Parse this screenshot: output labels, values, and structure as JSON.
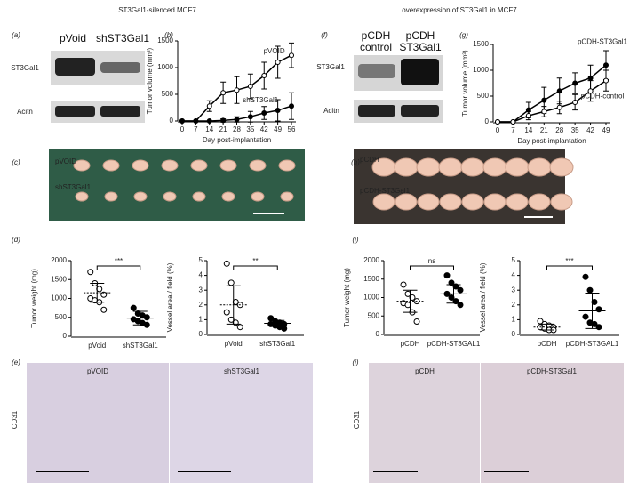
{
  "titles": [
    "ST3Gal1-silenced MCF7",
    "overexpression of ST3Gal1 in MCF7"
  ],
  "panel_letters": [
    "(a)",
    "(b)",
    "(c)",
    "(d)",
    "(e)",
    "(f)",
    "(g)",
    "(h)",
    "(i)",
    "(j)"
  ],
  "blots": [
    {
      "lanes": [
        "pVoid",
        "shST3Gal1"
      ],
      "rows": [
        "ST3Gal1",
        "Acitn"
      ]
    },
    {
      "lanes": [
        "pCDH control",
        "pCDH ST3Gal1"
      ],
      "rows": [
        "ST3Gal1",
        "Acitn"
      ]
    }
  ],
  "photos": [
    {
      "labels": [
        "pVOID",
        "shST3Gal1"
      ]
    },
    {
      "labels": [
        "pCDH",
        "pCDH-ST3Gal1"
      ]
    }
  ],
  "ihc": [
    {
      "row_label": "CD31",
      "panels": [
        "pVOID",
        "shST3Gal1"
      ]
    },
    {
      "row_label": "CD31",
      "panels": [
        "pCDH",
        "pCDH-ST3Gal1"
      ]
    }
  ],
  "chart_data": [
    {
      "type": "line",
      "x_label": "Day post-implantation",
      "y_label": "Tumor volume (mm³)",
      "x": [
        0,
        7,
        14,
        21,
        28,
        35,
        42,
        49,
        56
      ],
      "xlim": [
        0,
        56
      ],
      "xticks": [
        0,
        7,
        14,
        21,
        28,
        35,
        42,
        49,
        56
      ],
      "ylim": [
        0,
        1500
      ],
      "yticks": [
        0,
        500,
        1000,
        1500
      ],
      "series": [
        {
          "name": "pVOID",
          "marker_fill": "#ffffff",
          "values": [
            0,
            0,
            280,
            530,
            580,
            650,
            850,
            1100,
            1230
          ],
          "error": [
            0,
            0,
            100,
            200,
            250,
            230,
            250,
            300,
            230
          ]
        },
        {
          "name": "shST3Gal1",
          "marker_fill": "#000000",
          "values": [
            0,
            0,
            0,
            10,
            30,
            80,
            150,
            200,
            280
          ],
          "error": [
            0,
            0,
            0,
            30,
            50,
            100,
            120,
            200,
            250
          ]
        }
      ]
    },
    {
      "type": "line",
      "x_label": "Day post-implantation",
      "y_label": "Tumor volume (mm³)",
      "x": [
        0,
        7,
        14,
        21,
        28,
        35,
        42,
        49
      ],
      "xlim": [
        0,
        49
      ],
      "xticks": [
        0,
        7,
        14,
        21,
        28,
        35,
        42,
        49
      ],
      "ylim": [
        0,
        1500
      ],
      "yticks": [
        0,
        500,
        1000,
        1500
      ],
      "series": [
        {
          "name": "pCDH-ST3Gal1",
          "marker_fill": "#000000",
          "values": [
            0,
            0,
            230,
            420,
            600,
            750,
            850,
            1100
          ],
          "error": [
            0,
            0,
            150,
            250,
            250,
            200,
            250,
            280
          ]
        },
        {
          "name": "pCDH-control",
          "marker_fill": "#ffffff",
          "values": [
            0,
            0,
            120,
            200,
            280,
            380,
            600,
            800
          ],
          "error": [
            0,
            0,
            80,
            100,
            120,
            150,
            200,
            200
          ]
        }
      ]
    },
    {
      "type": "strip",
      "y_label": "Tumor weight (mg)",
      "categories": [
        "pVoid",
        "shST3Gal1"
      ],
      "ylim": [
        0,
        2000
      ],
      "yticks": [
        0,
        500,
        1000,
        1500,
        2000
      ],
      "annotation": "***",
      "groups": [
        {
          "marker_fill": "#ffffff",
          "values": [
            1700,
            1400,
            1250,
            1100,
            1000,
            950,
            900,
            700
          ],
          "mean": 1150,
          "sd": 250
        },
        {
          "marker_fill": "#000000",
          "values": [
            750,
            600,
            550,
            500,
            450,
            400,
            350,
            300
          ],
          "mean": 480,
          "sd": 180
        }
      ]
    },
    {
      "type": "strip",
      "y_label": "Vessel area / field (%)",
      "categories": [
        "pVoid",
        "shST3Gal1"
      ],
      "ylim": [
        0,
        5
      ],
      "yticks": [
        0,
        1,
        2,
        3,
        4,
        5
      ],
      "annotation": "**",
      "groups": [
        {
          "marker_fill": "#ffffff",
          "values": [
            4.8,
            3.5,
            2.2,
            2.0,
            1.5,
            1.0,
            0.8,
            0.5
          ],
          "mean": 2.0,
          "sd": 1.3
        },
        {
          "marker_fill": "#000000",
          "values": [
            1.1,
            0.9,
            0.8,
            0.7,
            0.7,
            0.6,
            0.5,
            0.4
          ],
          "mean": 0.75,
          "sd": 0.2
        }
      ]
    },
    {
      "type": "strip",
      "y_label": "Tumor weight (mg)",
      "categories": [
        "pCDH",
        "pCDH-ST3GAL1"
      ],
      "ylim": [
        0,
        2000
      ],
      "yticks": [
        0,
        500,
        1000,
        1500,
        2000
      ],
      "annotation": "ns",
      "groups": [
        {
          "marker_fill": "#ffffff",
          "values": [
            1350,
            1100,
            1000,
            900,
            850,
            800,
            600,
            350
          ],
          "mean": 900,
          "sd": 300
        },
        {
          "marker_fill": "#000000",
          "values": [
            1600,
            1400,
            1300,
            1200,
            1100,
            1000,
            900,
            800
          ],
          "mean": 1100,
          "sd": 250
        }
      ]
    },
    {
      "type": "strip",
      "y_label": "Vessel area / field (%)",
      "categories": [
        "pCDH",
        "pCDH-ST3GAL1"
      ],
      "ylim": [
        0,
        5
      ],
      "yticks": [
        0,
        1,
        2,
        3,
        4,
        5
      ],
      "annotation": "***",
      "groups": [
        {
          "marker_fill": "#ffffff",
          "values": [
            0.9,
            0.7,
            0.6,
            0.5,
            0.5,
            0.4,
            0.3,
            0.3
          ],
          "mean": 0.5,
          "sd": 0.2
        },
        {
          "marker_fill": "#000000",
          "values": [
            3.9,
            3.0,
            2.2,
            1.7,
            1.2,
            0.8,
            0.7,
            0.5
          ],
          "mean": 1.6,
          "sd": 1.2
        }
      ]
    }
  ]
}
